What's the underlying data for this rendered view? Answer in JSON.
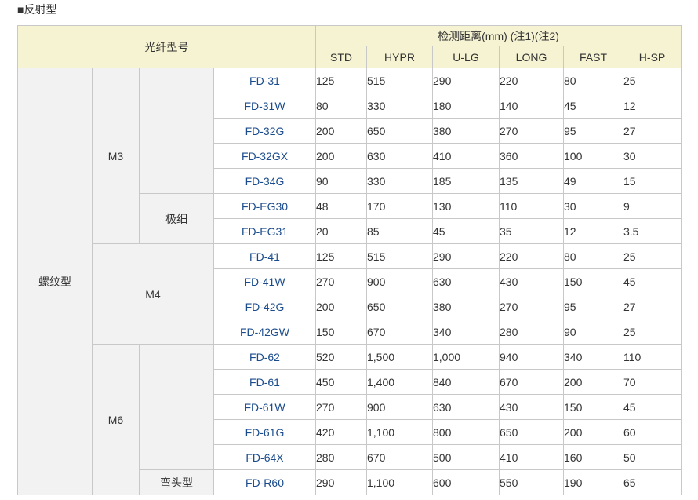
{
  "section_title": "■反射型",
  "header": {
    "fiber_model": "光纤型号",
    "distance": "检测距离(mm) (注1)(注2)",
    "modes": [
      "STD",
      "HYPR",
      "U-LG",
      "LONG",
      "FAST",
      "H-SP"
    ]
  },
  "groups": {
    "screw": "螺纹型",
    "m3": "M3",
    "m4": "M4",
    "m6": "M6",
    "ultrafine": "极细",
    "bent": "弯头型"
  },
  "rows": [
    {
      "model": "FD-31",
      "values": [
        "125",
        "515",
        "290",
        "220",
        "80",
        "25"
      ]
    },
    {
      "model": "FD-31W",
      "values": [
        "80",
        "330",
        "180",
        "140",
        "45",
        "12"
      ]
    },
    {
      "model": "FD-32G",
      "values": [
        "200",
        "650",
        "380",
        "270",
        "95",
        "27"
      ]
    },
    {
      "model": "FD-32GX",
      "values": [
        "200",
        "630",
        "410",
        "360",
        "100",
        "30"
      ]
    },
    {
      "model": "FD-34G",
      "values": [
        "90",
        "330",
        "185",
        "135",
        "49",
        "15"
      ]
    },
    {
      "model": "FD-EG30",
      "values": [
        "48",
        "170",
        "130",
        "110",
        "30",
        "9"
      ]
    },
    {
      "model": "FD-EG31",
      "values": [
        "20",
        "85",
        "45",
        "35",
        "12",
        "3.5"
      ]
    },
    {
      "model": "FD-41",
      "values": [
        "125",
        "515",
        "290",
        "220",
        "80",
        "25"
      ]
    },
    {
      "model": "FD-41W",
      "values": [
        "270",
        "900",
        "630",
        "430",
        "150",
        "45"
      ]
    },
    {
      "model": "FD-42G",
      "values": [
        "200",
        "650",
        "380",
        "270",
        "95",
        "27"
      ]
    },
    {
      "model": "FD-42GW",
      "values": [
        "150",
        "670",
        "340",
        "280",
        "90",
        "25"
      ]
    },
    {
      "model": "FD-62",
      "values": [
        "520",
        "1,500",
        "1,000",
        "940",
        "340",
        "110"
      ]
    },
    {
      "model": "FD-61",
      "values": [
        "450",
        "1,400",
        "840",
        "670",
        "200",
        "70"
      ]
    },
    {
      "model": "FD-61W",
      "values": [
        "270",
        "900",
        "630",
        "430",
        "150",
        "45"
      ]
    },
    {
      "model": "FD-61G",
      "values": [
        "420",
        "1,100",
        "800",
        "650",
        "200",
        "60"
      ]
    },
    {
      "model": "FD-64X",
      "values": [
        "280",
        "670",
        "500",
        "410",
        "160",
        "50"
      ]
    },
    {
      "model": "FD-R60",
      "values": [
        "290",
        "1,100",
        "600",
        "550",
        "190",
        "65"
      ]
    }
  ]
}
